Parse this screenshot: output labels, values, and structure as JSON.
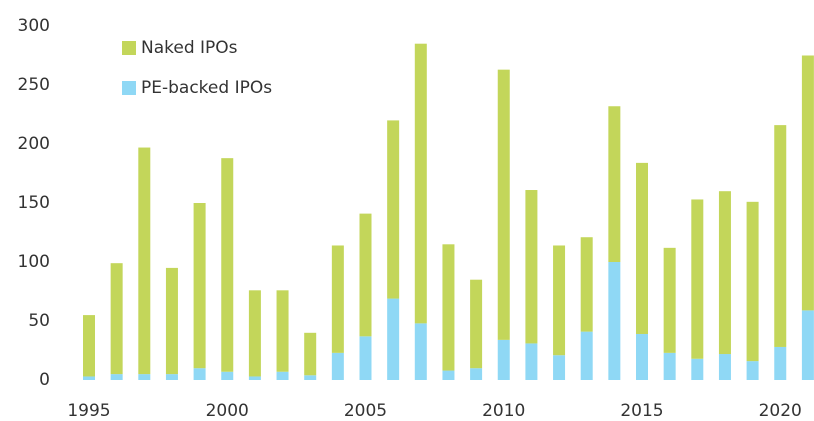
{
  "chart_data": {
    "type": "stacked_bar",
    "categories": [
      "1995",
      null,
      null,
      null,
      null,
      "2000",
      null,
      null,
      null,
      null,
      "2005",
      null,
      null,
      null,
      null,
      "2010",
      null,
      null,
      null,
      null,
      "2015",
      null,
      null,
      null,
      null,
      "2020",
      null
    ],
    "series": [
      {
        "name": "Naked IPOs",
        "color": "#c3d65a",
        "values": [
          52,
          94,
          192,
          90,
          140,
          181,
          73,
          69,
          36,
          91,
          104,
          151,
          237,
          107,
          75,
          229,
          130,
          93,
          80,
          132,
          145,
          89,
          135,
          138,
          135,
          188,
          216
        ]
      },
      {
        "name": "PE-backed IPOs",
        "color": "#8fd8f5",
        "values": [
          3,
          5,
          5,
          5,
          10,
          7,
          3,
          7,
          4,
          23,
          37,
          69,
          48,
          8,
          10,
          34,
          31,
          21,
          41,
          100,
          39,
          23,
          18,
          22,
          16,
          28,
          59
        ]
      }
    ],
    "ylim": [
      0,
      300
    ],
    "yticks": [
      0,
      50,
      100,
      150,
      200,
      250,
      300
    ],
    "grid": false,
    "legend": "top-left"
  }
}
